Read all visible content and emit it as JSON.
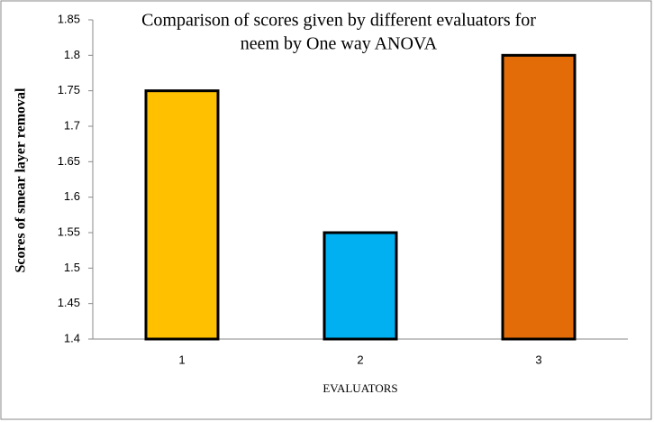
{
  "chart_data": {
    "type": "bar",
    "title": [
      "Comparison of scores given by different evaluators for",
      "neem  by One way ANOVA"
    ],
    "x_label": "EVALUATORS",
    "y_label": "Scores of smear layer removal",
    "categories": [
      "1",
      "2",
      "3"
    ],
    "values": [
      1.75,
      1.55,
      1.8
    ],
    "colors": [
      "#ffc000",
      "#00b0f0",
      "#e36c09"
    ],
    "ylim": [
      1.4,
      1.85
    ],
    "yticks": [
      1.4,
      1.45,
      1.5,
      1.55,
      1.6,
      1.65,
      1.7,
      1.75,
      1.8,
      1.85
    ],
    "grid": false
  }
}
